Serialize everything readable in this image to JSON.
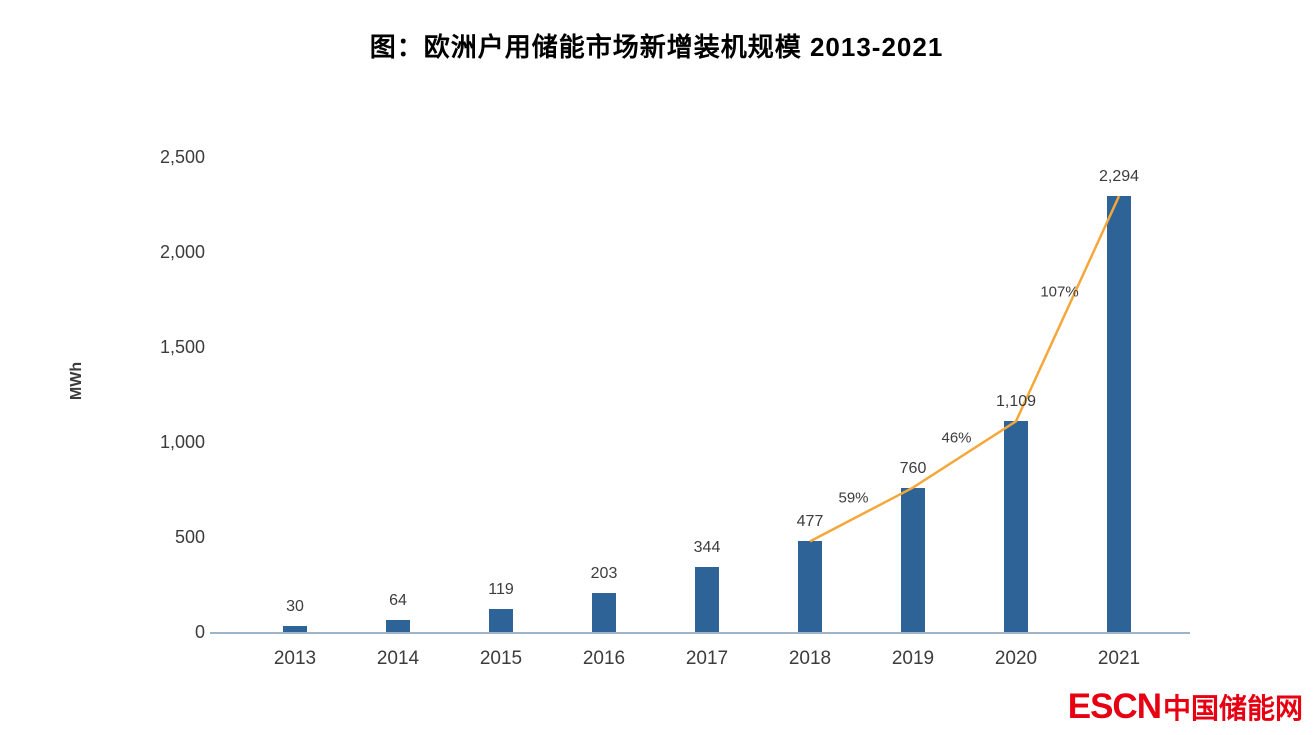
{
  "title": "图：欧洲户用储能市场新增装机规模 2013-2021",
  "chart_data": {
    "type": "bar",
    "title": "图：欧洲户用储能市场新增装机规模 2013-2021",
    "categories": [
      "2013",
      "2014",
      "2015",
      "2016",
      "2017",
      "2018",
      "2019",
      "2020",
      "2021"
    ],
    "values": [
      30,
      64,
      119,
      203,
      344,
      477,
      760,
      1109,
      2294
    ],
    "value_labels": [
      "30",
      "64",
      "119",
      "203",
      "344",
      "477",
      "760",
      "1,109",
      "2,294"
    ],
    "xlabel": "",
    "ylabel": "MWh",
    "ylim": [
      0,
      2500
    ],
    "yticks": [
      0,
      500,
      1000,
      1500,
      2000,
      2500
    ],
    "ytick_labels": [
      "0",
      "500",
      "1,000",
      "1,500",
      "2,000",
      "2,500"
    ],
    "grid": false,
    "legend": null,
    "bar_color": "#2d6397",
    "axis_line_color": "#9db5c8",
    "growth_line": {
      "color": "#f5a73b",
      "start_index": 5,
      "labels": [
        {
          "between": [
            "2018",
            "2019"
          ],
          "text": "59%"
        },
        {
          "between": [
            "2019",
            "2020"
          ],
          "text": "46%"
        },
        {
          "between": [
            "2020",
            "2021"
          ],
          "text": "107%"
        }
      ]
    }
  },
  "watermark": {
    "text_latin": "ESCN",
    "text_cn": "中国储能网",
    "color": "#e60012"
  }
}
